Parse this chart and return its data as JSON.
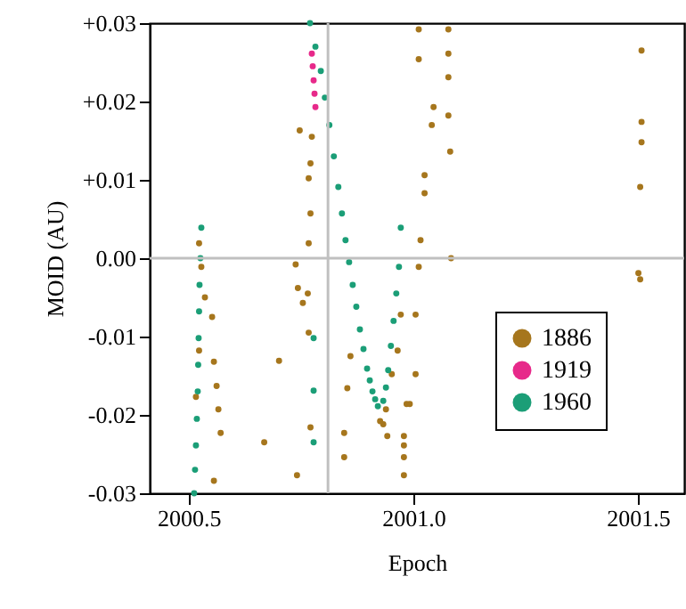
{
  "chart_data": {
    "type": "scatter",
    "xlabel": "Epoch",
    "ylabel": "MOID (AU)",
    "xlim": [
      2000.413,
      2001.603
    ],
    "ylim": [
      -0.03,
      0.03
    ],
    "xticks": [
      2000.5,
      {
        "value": 2001.0,
        "label": "2001.0"
      },
      2001.5
    ],
    "yticks": [
      {
        "value": -0.03,
        "label": "-0.03"
      },
      {
        "value": -0.02,
        "label": "-0.02"
      },
      {
        "value": -0.01,
        "label": "-0.01"
      },
      {
        "value": 0,
        "label": "0.00"
      },
      {
        "value": 0.01,
        "label": "+0.01"
      },
      {
        "value": 0.02,
        "label": "+0.02"
      },
      {
        "value": 0.03,
        "label": "+0.03"
      }
    ],
    "grid": false,
    "legend": "bottom right",
    "marker": "circle",
    "ref_lines": [
      {
        "axis": "x",
        "value": 2000.81,
        "color": "#c0c0c0"
      },
      {
        "axis": "y",
        "value": 0,
        "color": "#c0c0c0"
      }
    ],
    "series": [
      {
        "name": "1886",
        "color": "#a6761d",
        "x": [
          2000.523,
          2000.528,
          2000.536,
          2000.523,
          2000.552,
          2000.556,
          2000.562,
          2000.566,
          2000.571,
          2000.556,
          2000.516,
          2000.701,
          2000.668,
          2000.741,
          2000.747,
          2000.774,
          2000.771,
          2000.767,
          2000.771,
          2000.767,
          2000.738,
          2000.743,
          2000.754,
          2000.765,
          2000.767,
          2000.771,
          2000.86,
          2000.853,
          2000.846,
          2000.846,
          2000.933,
          2000.942,
          2000.979,
          2000.979,
          2000.985,
          2001.012,
          2001.012,
          2001.045,
          2001.041,
          2001.025,
          2001.025,
          2001.078,
          2001.078,
          2001.078,
          2001.078,
          2001.082,
          2001.084,
          2001.016,
          2001.012,
          2001.005,
          2001.005,
          2000.992,
          2000.979,
          2000.979,
          2001.508,
          2001.508,
          2001.508,
          2001.505,
          2001.501,
          2001.505,
          2000.926,
          2000.939,
          2000.952,
          2000.965,
          2000.972
        ],
        "values": [
          0.0019,
          -0.0011,
          -0.005,
          -0.0118,
          -0.0075,
          -0.0132,
          -0.0163,
          -0.0193,
          -0.0223,
          -0.0284,
          -0.0177,
          -0.0131,
          -0.0235,
          -0.0277,
          0.0163,
          0.0155,
          0.0121,
          0.0102,
          0.0057,
          0.0019,
          -0.0008,
          -0.0038,
          -0.0057,
          -0.0045,
          -0.0095,
          -0.0216,
          -0.0125,
          -0.0166,
          -0.0223,
          -0.0254,
          -0.0212,
          -0.0227,
          -0.0227,
          -0.0254,
          -0.0186,
          0.0292,
          0.0254,
          0.0193,
          0.017,
          0.0106,
          0.0083,
          0.0292,
          0.0261,
          0.0231,
          0.0182,
          0.0136,
          0.0,
          0.0023,
          -0.0011,
          -0.0072,
          -0.0148,
          -0.0186,
          -0.0239,
          -0.0277,
          0.0265,
          0.0174,
          0.0148,
          0.0091,
          -0.0019,
          -0.0027,
          -0.0208,
          -0.0193,
          -0.0148,
          -0.0118,
          -0.0072
        ]
      },
      {
        "name": "1919",
        "color": "#e7298a",
        "x": [
          2000.774,
          2000.776,
          2000.778,
          2000.78,
          2000.782
        ],
        "values": [
          0.0261,
          0.0245,
          0.0227,
          0.021,
          0.0193
        ]
      },
      {
        "name": "1960",
        "color": "#1b9e77",
        "x": [
          2000.77,
          2000.782,
          2000.794,
          2000.803,
          2000.813,
          2000.823,
          2000.833,
          2000.841,
          2000.849,
          2000.857,
          2000.865,
          2000.873,
          2000.881,
          2000.889,
          2000.897,
          2000.903,
          2000.909,
          2000.915,
          2000.921,
          2000.933,
          2000.939,
          2000.944,
          2000.95,
          2000.956,
          2000.962,
          2000.968,
          2000.972,
          2000.512,
          2000.514,
          2000.516,
          2000.518,
          2000.52,
          2000.521,
          2000.522,
          2000.523,
          2000.524,
          2000.526,
          2000.528,
          2000.778,
          2000.778,
          2000.778
        ],
        "values": [
          0.03,
          0.027,
          0.0239,
          0.0205,
          0.017,
          0.013,
          0.0091,
          0.0057,
          0.0023,
          -0.0005,
          -0.0034,
          -0.0062,
          -0.0091,
          -0.0116,
          -0.0141,
          -0.0156,
          -0.017,
          -0.018,
          -0.0189,
          -0.0182,
          -0.0165,
          -0.0143,
          -0.0112,
          -0.008,
          -0.0045,
          -0.0011,
          0.0039,
          -0.03,
          -0.027,
          -0.0239,
          -0.0205,
          -0.017,
          -0.0136,
          -0.0102,
          -0.0068,
          -0.0034,
          0.0,
          0.0039,
          -0.0102,
          -0.0169,
          -0.0235
        ]
      }
    ]
  }
}
